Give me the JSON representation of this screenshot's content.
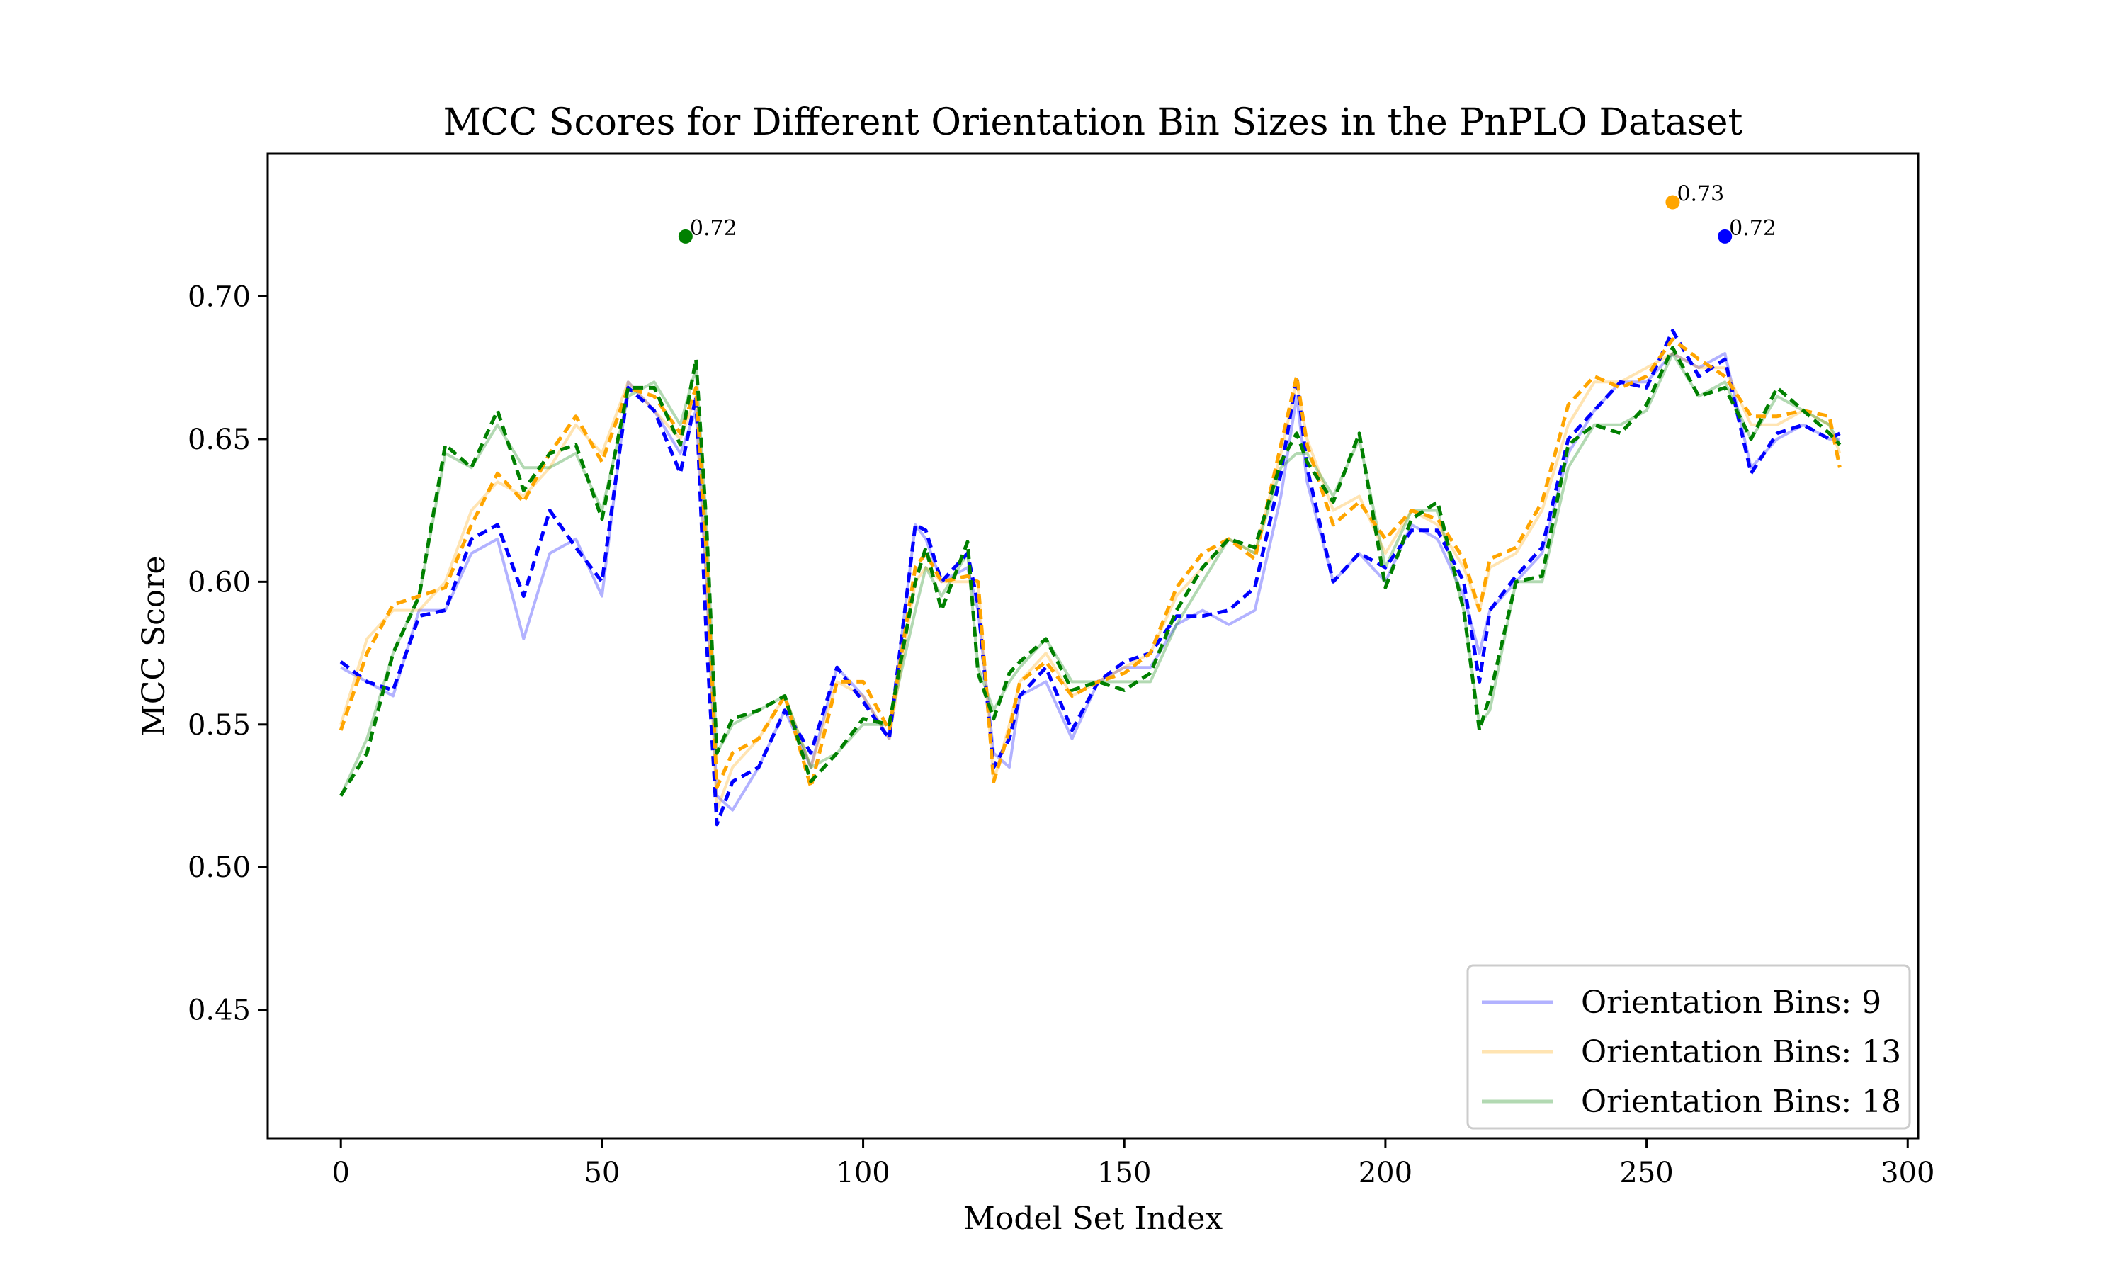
{
  "chart_data": {
    "type": "line",
    "title": "MCC Scores for Different Orientation Bin Sizes in the PnPLO Dataset",
    "xlabel": "Model Set Index",
    "ylabel": "MCC Score",
    "xlim": [
      -14,
      302
    ],
    "ylim": [
      0.405,
      0.75
    ],
    "xticks": [
      0,
      50,
      100,
      150,
      200,
      250,
      300
    ],
    "xtick_labels": [
      "0",
      "50",
      "100",
      "150",
      "200",
      "250",
      "300"
    ],
    "yticks": [
      0.45,
      0.5,
      0.55,
      0.6,
      0.65,
      0.7
    ],
    "ytick_labels": [
      "0.45",
      "0.50",
      "0.55",
      "0.60",
      "0.65",
      "0.70"
    ],
    "legend_position": "lower-right",
    "series": [
      {
        "name": "Orientation Bins: 9",
        "color": "#0000ff",
        "x": [
          0,
          5,
          10,
          15,
          20,
          25,
          30,
          35,
          40,
          45,
          50,
          55,
          60,
          65,
          68,
          70,
          72,
          75,
          80,
          85,
          90,
          95,
          100,
          105,
          110,
          112,
          115,
          120,
          122,
          125,
          128,
          130,
          135,
          140,
          145,
          150,
          155,
          160,
          165,
          170,
          175,
          180,
          183,
          185,
          190,
          195,
          200,
          205,
          210,
          215,
          218,
          220,
          225,
          230,
          235,
          240,
          245,
          250,
          255,
          260,
          265,
          270,
          275,
          280,
          285,
          287
        ],
        "raw": [
          0.57,
          0.565,
          0.56,
          0.59,
          0.59,
          0.61,
          0.615,
          0.58,
          0.61,
          0.615,
          0.595,
          0.67,
          0.66,
          0.645,
          0.66,
          0.6,
          0.525,
          0.52,
          0.535,
          0.555,
          0.535,
          0.57,
          0.56,
          0.545,
          0.62,
          0.615,
          0.6,
          0.605,
          0.59,
          0.54,
          0.535,
          0.56,
          0.565,
          0.545,
          0.565,
          0.57,
          0.57,
          0.585,
          0.59,
          0.585,
          0.59,
          0.63,
          0.665,
          0.635,
          0.6,
          0.61,
          0.6,
          0.62,
          0.615,
          0.595,
          0.575,
          0.59,
          0.6,
          0.61,
          0.645,
          0.66,
          0.67,
          0.67,
          0.68,
          0.675,
          0.68,
          0.64,
          0.65,
          0.655,
          0.65,
          0.65
        ],
        "rolling_mean": [
          0.572,
          0.565,
          0.562,
          0.588,
          0.59,
          0.615,
          0.62,
          0.595,
          0.625,
          0.612,
          0.6,
          0.668,
          0.66,
          0.638,
          0.665,
          0.58,
          0.515,
          0.53,
          0.535,
          0.555,
          0.54,
          0.57,
          0.558,
          0.545,
          0.62,
          0.618,
          0.6,
          0.61,
          0.592,
          0.535,
          0.545,
          0.56,
          0.57,
          0.548,
          0.565,
          0.572,
          0.575,
          0.588,
          0.588,
          0.59,
          0.598,
          0.638,
          0.672,
          0.64,
          0.6,
          0.61,
          0.605,
          0.618,
          0.618,
          0.6,
          0.565,
          0.59,
          0.602,
          0.612,
          0.65,
          0.66,
          0.67,
          0.668,
          0.688,
          0.672,
          0.678,
          0.638,
          0.652,
          0.655,
          0.65,
          0.652
        ]
      },
      {
        "name": "Orientation Bins: 13",
        "color": "#ffa500",
        "x": [
          0,
          5,
          10,
          15,
          20,
          25,
          30,
          35,
          40,
          45,
          50,
          55,
          60,
          65,
          68,
          70,
          72,
          75,
          80,
          85,
          90,
          95,
          100,
          105,
          110,
          112,
          115,
          120,
          122,
          125,
          128,
          130,
          135,
          140,
          145,
          150,
          155,
          160,
          165,
          170,
          175,
          180,
          183,
          185,
          190,
          195,
          200,
          205,
          210,
          215,
          218,
          220,
          225,
          230,
          235,
          240,
          245,
          250,
          255,
          260,
          265,
          270,
          275,
          280,
          285,
          287
        ],
        "raw": [
          0.55,
          0.58,
          0.59,
          0.59,
          0.6,
          0.625,
          0.635,
          0.63,
          0.64,
          0.655,
          0.645,
          0.67,
          0.66,
          0.65,
          0.665,
          0.6,
          0.52,
          0.535,
          0.545,
          0.56,
          0.535,
          0.565,
          0.56,
          0.545,
          0.6,
          0.605,
          0.6,
          0.6,
          0.6,
          0.53,
          0.55,
          0.565,
          0.575,
          0.56,
          0.565,
          0.57,
          0.575,
          0.595,
          0.605,
          0.615,
          0.61,
          0.645,
          0.67,
          0.65,
          0.625,
          0.63,
          0.61,
          0.625,
          0.62,
          0.605,
          0.59,
          0.605,
          0.61,
          0.625,
          0.655,
          0.67,
          0.67,
          0.675,
          0.68,
          0.675,
          0.675,
          0.655,
          0.655,
          0.66,
          0.655,
          0.645
        ],
        "rolling_mean": [
          0.548,
          0.575,
          0.592,
          0.595,
          0.598,
          0.62,
          0.638,
          0.628,
          0.645,
          0.658,
          0.642,
          0.668,
          0.665,
          0.652,
          0.668,
          0.61,
          0.528,
          0.54,
          0.545,
          0.56,
          0.528,
          0.565,
          0.565,
          0.548,
          0.605,
          0.61,
          0.6,
          0.602,
          0.6,
          0.53,
          0.548,
          0.565,
          0.572,
          0.56,
          0.565,
          0.568,
          0.575,
          0.598,
          0.61,
          0.615,
          0.608,
          0.648,
          0.672,
          0.648,
          0.62,
          0.628,
          0.615,
          0.625,
          0.622,
          0.608,
          0.59,
          0.608,
          0.612,
          0.628,
          0.662,
          0.672,
          0.668,
          0.672,
          0.685,
          0.678,
          0.672,
          0.658,
          0.658,
          0.66,
          0.658,
          0.64
        ]
      },
      {
        "name": "Orientation Bins: 18",
        "color": "#008000",
        "x": [
          0,
          5,
          10,
          15,
          20,
          25,
          30,
          35,
          40,
          45,
          50,
          55,
          60,
          65,
          68,
          70,
          72,
          75,
          80,
          85,
          90,
          95,
          100,
          105,
          110,
          112,
          115,
          120,
          122,
          125,
          128,
          130,
          135,
          140,
          145,
          150,
          155,
          160,
          165,
          170,
          175,
          180,
          183,
          185,
          190,
          195,
          200,
          205,
          210,
          215,
          218,
          220,
          225,
          230,
          235,
          240,
          245,
          250,
          255,
          260,
          265,
          270,
          275,
          280,
          285,
          287
        ],
        "raw": [
          0.525,
          0.545,
          0.575,
          0.595,
          0.645,
          0.64,
          0.655,
          0.64,
          0.64,
          0.645,
          0.625,
          0.665,
          0.67,
          0.655,
          0.675,
          0.62,
          0.54,
          0.55,
          0.555,
          0.56,
          0.535,
          0.54,
          0.55,
          0.55,
          0.59,
          0.605,
          0.595,
          0.61,
          0.57,
          0.555,
          0.565,
          0.57,
          0.58,
          0.565,
          0.565,
          0.565,
          0.565,
          0.585,
          0.6,
          0.615,
          0.61,
          0.64,
          0.645,
          0.645,
          0.63,
          0.65,
          0.605,
          0.625,
          0.625,
          0.59,
          0.55,
          0.555,
          0.6,
          0.6,
          0.64,
          0.655,
          0.655,
          0.66,
          0.68,
          0.665,
          0.67,
          0.65,
          0.665,
          0.66,
          0.655,
          0.648
        ],
        "rolling_mean": [
          0.525,
          0.54,
          0.575,
          0.595,
          0.648,
          0.64,
          0.66,
          0.632,
          0.645,
          0.648,
          0.622,
          0.668,
          0.668,
          0.648,
          0.678,
          0.62,
          0.54,
          0.552,
          0.555,
          0.56,
          0.53,
          0.54,
          0.552,
          0.55,
          0.6,
          0.612,
          0.59,
          0.614,
          0.568,
          0.552,
          0.568,
          0.572,
          0.58,
          0.562,
          0.565,
          0.562,
          0.568,
          0.59,
          0.605,
          0.615,
          0.612,
          0.642,
          0.652,
          0.642,
          0.628,
          0.652,
          0.598,
          0.622,
          0.628,
          0.59,
          0.548,
          0.56,
          0.6,
          0.602,
          0.648,
          0.655,
          0.652,
          0.662,
          0.682,
          0.665,
          0.668,
          0.65,
          0.668,
          0.66,
          0.652,
          0.648
        ]
      }
    ],
    "annotations": [
      {
        "series": "Orientation Bins: 18",
        "x": 66,
        "y": 0.721,
        "label": "0.72",
        "color": "#008000"
      },
      {
        "series": "Orientation Bins: 13",
        "x": 255,
        "y": 0.733,
        "label": "0.73",
        "color": "#ffa500"
      },
      {
        "series": "Orientation Bins: 9",
        "x": 265,
        "y": 0.721,
        "label": "0.72",
        "color": "#0000ff"
      }
    ]
  }
}
